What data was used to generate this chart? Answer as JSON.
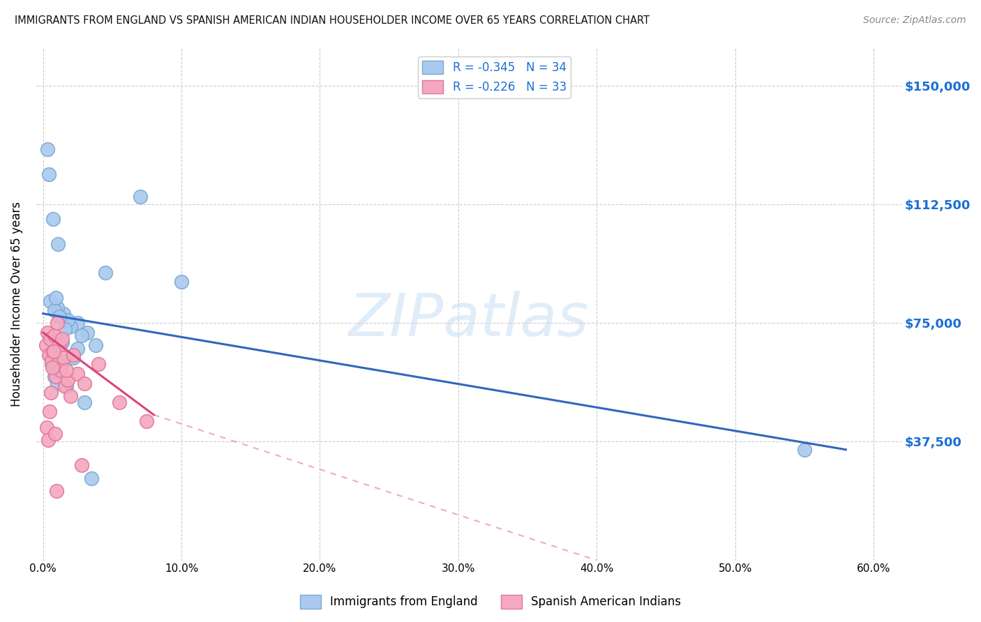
{
  "title": "IMMIGRANTS FROM ENGLAND VS SPANISH AMERICAN INDIAN HOUSEHOLDER INCOME OVER 65 YEARS CORRELATION CHART",
  "source": "Source: ZipAtlas.com",
  "xlabel_ticks": [
    "0.0%",
    "10.0%",
    "20.0%",
    "30.0%",
    "40.0%",
    "50.0%",
    "60.0%"
  ],
  "xlabel_vals": [
    0,
    10,
    20,
    30,
    40,
    50,
    60
  ],
  "ylabel": "Householder Income Over 65 years",
  "ytick_labels": [
    "$37,500",
    "$75,000",
    "$112,500",
    "$150,000"
  ],
  "ytick_vals": [
    37500,
    75000,
    112500,
    150000
  ],
  "ylim": [
    0,
    162000
  ],
  "xlim": [
    -0.5,
    62
  ],
  "watermark": "ZIPatlas",
  "legend1_label": "R = -0.345   N = 34",
  "legend2_label": "R = -0.226   N = 33",
  "england_color": "#aac9ee",
  "england_edge": "#7aaad4",
  "spain_color": "#f5a8c0",
  "spain_edge": "#e07898",
  "england_line_color": "#3366bb",
  "spain_line_color": "#dd4477",
  "grid_color": "#cccccc",
  "background_color": "#ffffff",
  "england_scatter_x": [
    1.5,
    2.5,
    1.0,
    0.5,
    2.0,
    1.8,
    3.2,
    0.8,
    1.2,
    1.6,
    2.8,
    0.6,
    0.9,
    1.4,
    3.8,
    0.3,
    0.4,
    0.7,
    1.1,
    4.5,
    7.0,
    10.0,
    55.0,
    0.5,
    0.6,
    0.8,
    1.0,
    1.3,
    1.5,
    1.7,
    2.2,
    2.5,
    3.0,
    3.5
  ],
  "england_scatter_y": [
    78000,
    75000,
    80000,
    82000,
    74000,
    76000,
    72000,
    79000,
    77000,
    73000,
    71000,
    70000,
    83000,
    69000,
    68000,
    130000,
    122000,
    108000,
    100000,
    91000,
    115000,
    88000,
    35000,
    65000,
    62000,
    58000,
    56000,
    60000,
    63000,
    55000,
    64000,
    67000,
    50000,
    26000
  ],
  "spain_scatter_x": [
    0.2,
    0.3,
    0.4,
    0.5,
    0.6,
    0.7,
    0.8,
    0.9,
    1.0,
    1.1,
    1.2,
    1.3,
    1.5,
    1.6,
    1.8,
    2.0,
    2.2,
    2.5,
    3.0,
    4.0,
    5.5,
    7.5,
    0.25,
    0.35,
    0.45,
    0.55,
    0.65,
    0.75,
    0.85,
    0.95,
    1.4,
    1.7,
    2.8
  ],
  "spain_scatter_y": [
    68000,
    72000,
    65000,
    70000,
    63000,
    66000,
    71000,
    58000,
    75000,
    62000,
    68000,
    60000,
    64000,
    55000,
    57000,
    52000,
    65000,
    59000,
    56000,
    62000,
    50000,
    44000,
    42000,
    38000,
    47000,
    53000,
    61000,
    66000,
    40000,
    22000,
    70000,
    60000,
    30000
  ],
  "england_line_x0": 0,
  "england_line_y0": 78000,
  "england_line_x1": 58,
  "england_line_y1": 35000,
  "spain_line_x0": 0,
  "spain_line_y0": 72000,
  "spain_line_x1": 8,
  "spain_line_y1": 46000,
  "spain_dash_x0": 8,
  "spain_dash_y0": 46000,
  "spain_dash_x1": 40,
  "spain_dash_y1": 0
}
